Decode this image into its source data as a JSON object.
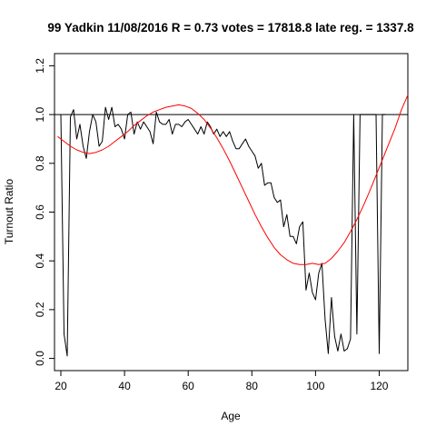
{
  "chart_data": {
    "type": "line",
    "title": "99 Yadkin 11/08/2016 R = 0.73 votes = 17818.8 late reg. = 1337.8",
    "xlabel": "Age",
    "ylabel": "Turnout Ratio",
    "xlim": [
      18,
      129
    ],
    "ylim": [
      -0.05,
      1.25
    ],
    "xticks": [
      20,
      40,
      60,
      80,
      100,
      120
    ],
    "yticks": [
      0.0,
      0.2,
      0.4,
      0.6,
      0.8,
      1.0,
      1.2
    ],
    "xtick_labels": [
      "20",
      "40",
      "60",
      "80",
      "100",
      "120"
    ],
    "ytick_labels": [
      "0.0",
      "0.2",
      "0.4",
      "0.6",
      "0.8",
      "1.0",
      "1.2"
    ],
    "reference_line": 1.0,
    "grid": false,
    "series": [
      {
        "color": "#000000",
        "x": [
          20,
          21,
          22,
          23,
          24,
          25,
          26,
          27,
          28,
          29,
          30,
          31,
          32,
          33,
          34,
          35,
          36,
          37,
          38,
          39,
          40,
          41,
          42,
          43,
          44,
          45,
          46,
          47,
          48,
          49,
          50,
          51,
          52,
          53,
          54,
          55,
          56,
          57,
          58,
          59,
          60,
          61,
          62,
          63,
          64,
          65,
          66,
          67,
          68,
          69,
          70,
          71,
          72,
          73,
          74,
          75,
          76,
          77,
          78,
          79,
          80,
          81,
          82,
          83,
          84,
          85,
          86,
          87,
          88,
          89,
          90,
          91,
          92,
          93,
          94,
          95,
          96,
          97,
          98,
          99,
          100,
          101,
          102,
          103,
          104,
          105,
          106,
          107,
          108,
          109,
          110,
          111,
          112,
          113,
          114,
          115,
          116,
          117,
          118,
          119,
          120,
          121,
          122
        ],
        "y": [
          1.0,
          0.1,
          0.01,
          0.99,
          1.02,
          0.9,
          0.96,
          0.87,
          0.82,
          0.93,
          1.0,
          0.97,
          0.87,
          0.89,
          1.03,
          0.98,
          1.03,
          0.95,
          0.96,
          0.94,
          0.9,
          1.0,
          1.01,
          0.92,
          0.97,
          0.94,
          0.97,
          0.95,
          0.93,
          0.88,
          1.01,
          0.97,
          0.96,
          0.96,
          0.98,
          0.92,
          0.96,
          0.96,
          0.95,
          0.97,
          0.98,
          0.96,
          0.94,
          0.92,
          0.95,
          0.92,
          0.97,
          0.95,
          0.92,
          0.94,
          0.91,
          0.93,
          0.91,
          0.93,
          0.89,
          0.86,
          0.86,
          0.88,
          0.9,
          0.87,
          0.85,
          0.83,
          0.78,
          0.8,
          0.71,
          0.72,
          0.72,
          0.66,
          0.64,
          0.65,
          0.54,
          0.59,
          0.5,
          0.5,
          0.47,
          0.54,
          0.56,
          0.28,
          0.35,
          0.27,
          0.24,
          0.35,
          0.39,
          0.16,
          0.02,
          0.25,
          0.09,
          0.03,
          0.1,
          0.03,
          0.04,
          0.08,
          1.0,
          0.1,
          1.0,
          1.0,
          1.0,
          1.0,
          1.0,
          1.0,
          0.02,
          1.0,
          1.0
        ]
      },
      {
        "color": "#ff0000",
        "x": [
          19,
          21,
          23,
          25,
          27,
          29,
          31,
          33,
          35,
          37,
          39,
          41,
          43,
          45,
          47,
          49,
          51,
          53,
          55,
          57,
          59,
          61,
          63,
          65,
          67,
          69,
          71,
          73,
          75,
          77,
          79,
          81,
          83,
          85,
          87,
          89,
          91,
          93,
          95,
          97,
          99,
          101,
          103,
          105,
          107,
          109,
          111,
          113,
          115,
          117,
          119,
          121,
          123,
          125,
          127,
          129
        ],
        "y": [
          0.91,
          0.89,
          0.87,
          0.855,
          0.845,
          0.84,
          0.845,
          0.855,
          0.87,
          0.89,
          0.91,
          0.93,
          0.955,
          0.975,
          0.995,
          1.01,
          1.02,
          1.03,
          1.035,
          1.04,
          1.035,
          1.025,
          1.005,
          0.98,
          0.945,
          0.905,
          0.86,
          0.81,
          0.755,
          0.7,
          0.645,
          0.59,
          0.54,
          0.495,
          0.455,
          0.425,
          0.405,
          0.39,
          0.385,
          0.385,
          0.39,
          0.385,
          0.39,
          0.41,
          0.44,
          0.475,
          0.52,
          0.57,
          0.625,
          0.685,
          0.75,
          0.815,
          0.88,
          0.945,
          1.02,
          1.08
        ]
      }
    ]
  }
}
